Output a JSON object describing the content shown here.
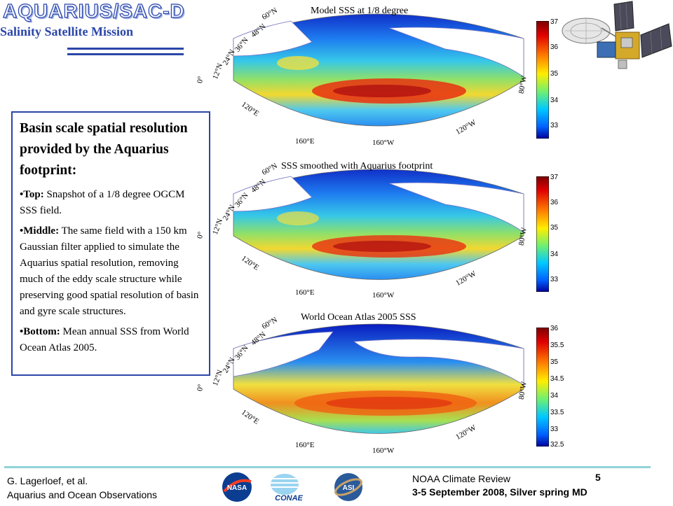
{
  "header": {
    "logo_text": "AQUARIUS/SAC-D",
    "mission": "Salinity Satellite Mission"
  },
  "textbox": {
    "title": "Basin scale spatial resolution provided by the Aquarius footprint:",
    "bullets": [
      {
        "label": "•Top:",
        "text": " Snapshot of a 1/8 degree OGCM SSS field."
      },
      {
        "label": "•Middle:",
        "text": " The same field with a 150 km Gaussian filter applied to simulate the Aquarius spatial resolution, removing much of the eddy scale structure while preserving good spatial resolution of basin and gyre scale structures."
      },
      {
        "label": "•Bottom:",
        "text": " Mean annual SSS from World Ocean Atlas 2005."
      }
    ]
  },
  "maps": [
    {
      "title": "Model SSS at 1/8 degree",
      "lat_labels": [
        "60°N",
        "48°N",
        "36°N",
        "24°N",
        "12°N",
        "0°"
      ],
      "lon_labels": [
        "120°E",
        "160°E",
        "160°W",
        "120°W",
        "80°W"
      ],
      "colorbar": [
        "37",
        "36",
        "35",
        "34",
        "33"
      ]
    },
    {
      "title": "SSS smoothed with Aquarius footprint",
      "lat_labels": [
        "60°N",
        "48°N",
        "36°N",
        "24°N",
        "12°N",
        "0°"
      ],
      "lon_labels": [
        "120°E",
        "160°E",
        "160°W",
        "120°W",
        "80°W"
      ],
      "colorbar": [
        "37",
        "36",
        "35",
        "34",
        "33"
      ]
    },
    {
      "title": "World Ocean Atlas 2005 SSS",
      "lat_labels": [
        "60°N",
        "48°N",
        "36°N",
        "24°N",
        "12°N",
        "0°"
      ],
      "lon_labels": [
        "120°E",
        "160°E",
        "160°W",
        "120°W",
        "80°W"
      ],
      "colorbar": [
        "36",
        "35.5",
        "35",
        "34.5",
        "34",
        "33.5",
        "33",
        "32.5"
      ]
    }
  ],
  "footer": {
    "author": "G. Lagerloef, et al.",
    "subtitle": "Aquarius and Ocean Observations",
    "meeting": "NOAA Climate Review",
    "page": "5",
    "dates": "3-5 September 2008, Silver spring MD",
    "logos": [
      "NASA",
      "CONAE",
      "ASI"
    ]
  }
}
